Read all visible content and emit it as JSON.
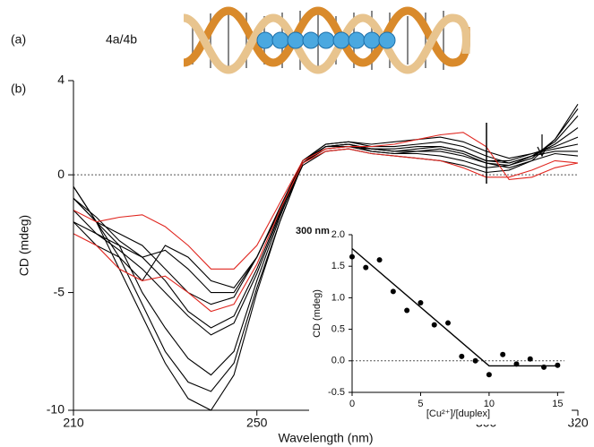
{
  "annotations": {
    "panel_a": "(a)",
    "compound": "4a/4b",
    "panel_b": "(b)"
  },
  "chart_data": [
    {
      "type": "line",
      "ylabel": "CD (mdeg)",
      "xlabel": "Wavelength (nm)",
      "x": [
        210,
        215,
        220,
        225,
        230,
        235,
        240,
        245,
        250,
        255,
        260,
        265,
        270,
        275,
        280,
        285,
        290,
        295,
        300,
        305,
        310,
        315,
        320
      ],
      "xlim": [
        210,
        320
      ],
      "ylim": [
        -10,
        4
      ],
      "xticks": [
        210,
        250,
        300,
        320
      ],
      "yticks": [
        4,
        0,
        -5,
        -10
      ],
      "zero_line": true,
      "series": [
        {
          "color": "#000000",
          "values": [
            -0.5,
            -2,
            -4,
            -6,
            -8,
            -9.5,
            -10,
            -8.5,
            -5,
            -2,
            0.5,
            1.2,
            1.3,
            1,
            0.9,
            1,
            1.1,
            0.9,
            0.5,
            0.3,
            0.6,
            1.5,
            3
          ]
        },
        {
          "color": "#000000",
          "values": [
            -1,
            -2,
            -3.5,
            -5.5,
            -7.5,
            -8.8,
            -9.2,
            -8,
            -4.8,
            -2,
            0.5,
            1.2,
            1.3,
            1.1,
            1,
            1,
            1,
            0.8,
            0.5,
            0.4,
            0.7,
            1.5,
            2.8
          ]
        },
        {
          "color": "#000000",
          "values": [
            -1,
            -2,
            -3,
            -5,
            -6.5,
            -7.8,
            -8.5,
            -7.5,
            -4.5,
            -1.8,
            0.6,
            1.2,
            1.3,
            1.1,
            1.1,
            1.2,
            1.2,
            1,
            0.6,
            0.5,
            0.8,
            1.4,
            2.5
          ]
        },
        {
          "color": "#000000",
          "values": [
            -0.5,
            -2,
            -2.5,
            -3,
            -4,
            -5,
            -5.5,
            -5.2,
            -3.5,
            -1.5,
            0.6,
            1.3,
            1.4,
            1.2,
            1.2,
            1.3,
            1.4,
            1.2,
            0.8,
            0.5,
            0.8,
            1.3,
            2
          ]
        },
        {
          "color": "#000000",
          "values": [
            -2,
            -3,
            -3.5,
            -4.5,
            -3,
            -3.5,
            -4.5,
            -4.8,
            -3.5,
            -1.5,
            0.5,
            1.2,
            1.2,
            1.1,
            1,
            1.1,
            1.2,
            1,
            0.6,
            0.6,
            0.9,
            1.2,
            1.6
          ]
        },
        {
          "color": "#000000",
          "values": [
            -1.5,
            -2.5,
            -3,
            -3.5,
            -3.2,
            -4,
            -5,
            -5,
            -3.5,
            -1.4,
            0.6,
            1.3,
            1.4,
            1.3,
            1.4,
            1.5,
            1.6,
            1.4,
            1,
            0.7,
            0.9,
            1.1,
            1.3
          ]
        },
        {
          "color": "#000000",
          "values": [
            -1,
            -1.8,
            -2.8,
            -3.5,
            -4.5,
            -5.8,
            -6.5,
            -6,
            -4,
            -1.6,
            0.5,
            1.1,
            1.2,
            1,
            0.9,
            0.9,
            0.8,
            0.6,
            0.3,
            0.4,
            0.8,
            1,
            1
          ]
        },
        {
          "color": "#000000",
          "values": [
            -2,
            -2.5,
            -3.2,
            -4,
            -5,
            -6,
            -6.8,
            -6.3,
            -4.2,
            -1.7,
            0.4,
            1,
            1.1,
            0.9,
            0.8,
            0.7,
            0.6,
            0.4,
            0.1,
            0.2,
            0.6,
            0.9,
            0.8
          ]
        },
        {
          "color": "#e0261f",
          "values": [
            -1.5,
            -2,
            -1.8,
            -1.7,
            -2.2,
            -3,
            -4,
            -4,
            -3,
            -1.2,
            0.6,
            1.1,
            1.2,
            1.2,
            1.3,
            1.5,
            1.7,
            1.8,
            1.2,
            -0.2,
            -0.1,
            0.3,
            0.5
          ]
        },
        {
          "color": "#e0261f",
          "values": [
            -2.5,
            -3,
            -4,
            -4.5,
            -4.3,
            -5,
            -5.8,
            -5.5,
            -3.8,
            -1.5,
            0.5,
            1,
            1.1,
            0.9,
            0.8,
            0.7,
            0.6,
            0.3,
            -0.1,
            -0.1,
            0.2,
            0.6,
            0.5
          ]
        }
      ]
    },
    {
      "type": "scatter",
      "title": "300 nm",
      "ylabel": "CD (mdeg)",
      "xlabel": "[Cu²⁺]/[duplex]",
      "x": [
        0,
        1,
        2,
        3,
        4,
        5,
        6,
        7,
        8,
        9,
        10,
        11,
        12,
        13,
        14,
        15
      ],
      "y": [
        1.65,
        1.48,
        1.6,
        1.1,
        0.8,
        0.92,
        0.57,
        0.6,
        0.07,
        0,
        -0.22,
        0.1,
        -0.05,
        0.03,
        -0.1,
        -0.07
      ],
      "fit": {
        "x": [
          0,
          10,
          15
        ],
        "y": [
          1.78,
          -0.08,
          -0.08
        ]
      },
      "xlim": [
        0,
        15.5
      ],
      "ylim": [
        -0.5,
        2
      ],
      "xticks": [
        0,
        5,
        10,
        15
      ],
      "yticks": [
        {
          "value": 2,
          "label": "2.0"
        },
        {
          "value": 1.5,
          "label": "1.5"
        },
        {
          "value": 1,
          "label": "1.0"
        },
        {
          "value": 0.5,
          "label": "0.5"
        },
        {
          "value": 0,
          "label": "0.0"
        },
        {
          "value": -0.5,
          "label": "-0.5"
        }
      ],
      "zero_line": true,
      "color": "#000000"
    }
  ]
}
